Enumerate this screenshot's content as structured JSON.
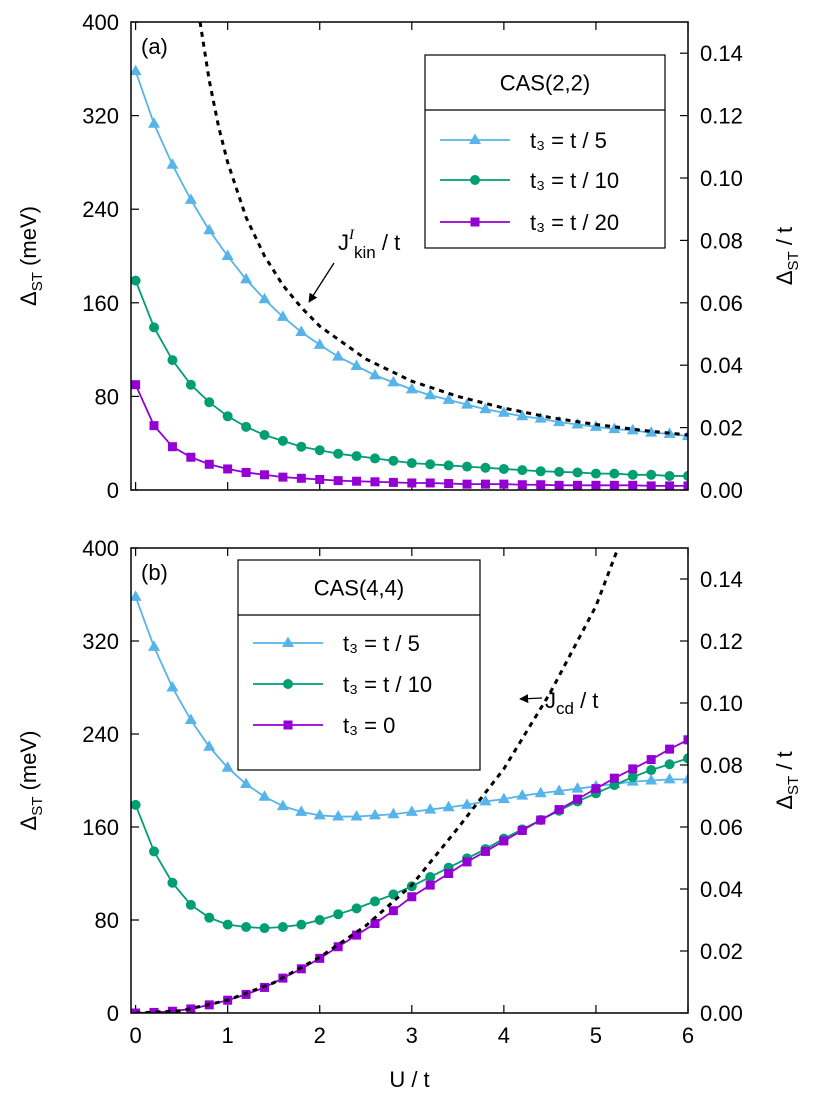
{
  "chart_data": [
    {
      "type": "line",
      "panel_label": "(a)",
      "legend_title": "CAS(2,2)",
      "ylabel": [
        "Δ",
        "ST",
        " (meV)"
      ],
      "y2label": [
        "Δ",
        "ST",
        " / t"
      ],
      "annotation": [
        "J",
        "I",
        "kin",
        " / t"
      ],
      "xlim": [
        -0.05,
        6
      ],
      "xticks": [
        0,
        1,
        2,
        3,
        4,
        5,
        6
      ],
      "show_xtick_labels": false,
      "ylim": [
        0,
        400
      ],
      "yticks": [
        0,
        80,
        160,
        240,
        320,
        400
      ],
      "y2lim": [
        0,
        0.15
      ],
      "y2ticks": [
        {
          "value": 0,
          "label": "0.00"
        },
        {
          "value": 0.02,
          "label": "0.02"
        },
        {
          "value": 0.04,
          "label": "0.04"
        },
        {
          "value": 0.06,
          "label": "0.06"
        },
        {
          "value": 0.08,
          "label": "0.08"
        },
        {
          "value": 0.1,
          "label": "0.10"
        },
        {
          "value": 0.12,
          "label": "0.12"
        },
        {
          "value": 0.14,
          "label": "0.14"
        }
      ],
      "x": [
        0,
        0.2,
        0.4,
        0.6,
        0.8,
        1,
        1.2,
        1.4,
        1.6,
        1.8,
        2,
        2.2,
        2.4,
        2.6,
        2.8,
        3,
        3.2,
        3.4,
        3.6,
        3.8,
        4,
        4.2,
        4.4,
        4.6,
        4.8,
        5,
        5.2,
        5.4,
        5.6,
        5.8,
        6
      ],
      "series": [
        {
          "name": "t₃ = t / 5",
          "color": "#56b4e9",
          "marker": "triangle",
          "values": [
            358,
            313,
            278,
            248,
            222,
            200,
            180,
            163,
            148,
            135,
            124,
            114,
            106,
            98,
            92,
            86,
            81,
            77,
            73,
            69,
            66,
            63,
            61,
            58,
            56,
            54,
            52,
            51,
            49,
            48,
            46
          ]
        },
        {
          "name": "t₃ = t / 10",
          "color": "#009e73",
          "marker": "circle",
          "values": [
            179,
            139,
            111,
            90,
            75,
            63,
            54,
            47,
            42,
            37,
            34,
            31,
            29,
            27,
            25,
            23,
            22,
            21,
            20,
            19,
            18,
            17,
            16,
            15.5,
            15,
            14,
            14,
            13,
            13,
            12,
            12
          ]
        },
        {
          "name": "t₃ = t / 20",
          "color": "#9400d3",
          "marker": "square",
          "values": [
            90,
            55,
            37,
            28,
            22,
            18,
            15,
            13,
            11,
            10,
            9,
            8,
            7.5,
            7,
            6.5,
            6,
            6,
            5.5,
            5,
            5,
            5,
            4.5,
            4.5,
            4,
            4,
            4,
            4,
            4,
            3.5,
            3.5,
            3.5
          ]
        },
        {
          "color": "#000000",
          "dashed": true,
          "x": [
            0.7,
            0.8,
            0.9,
            1,
            1.2,
            1.4,
            1.6,
            1.8,
            2,
            2.5,
            3,
            3.5,
            4,
            4.5,
            5,
            5.5,
            6
          ],
          "values": [
            400,
            350,
            311,
            280,
            233,
            200,
            175,
            156,
            140,
            112,
            93,
            80,
            70,
            62,
            56,
            51,
            47
          ]
        }
      ]
    },
    {
      "type": "line",
      "panel_label": "(b)",
      "legend_title": "CAS(4,4)",
      "ylabel": [
        "Δ",
        "ST",
        " (meV)"
      ],
      "y2label": [
        "Δ",
        "ST",
        " / t"
      ],
      "xlabel": "U / t",
      "annotation": [
        "J",
        "cd",
        " / t"
      ],
      "xlim": [
        -0.05,
        6
      ],
      "xticks": [
        0,
        1,
        2,
        3,
        4,
        5,
        6
      ],
      "show_xtick_labels": true,
      "ylim": [
        0,
        400
      ],
      "yticks": [
        0,
        80,
        160,
        240,
        320,
        400
      ],
      "y2lim": [
        0,
        0.15
      ],
      "y2ticks": [
        {
          "value": 0,
          "label": "0.00"
        },
        {
          "value": 0.02,
          "label": "0.02"
        },
        {
          "value": 0.04,
          "label": "0.04"
        },
        {
          "value": 0.06,
          "label": "0.06"
        },
        {
          "value": 0.08,
          "label": "0.08"
        },
        {
          "value": 0.1,
          "label": "0.10"
        },
        {
          "value": 0.12,
          "label": "0.12"
        },
        {
          "value": 0.14,
          "label": "0.14"
        }
      ],
      "x": [
        0,
        0.2,
        0.4,
        0.6,
        0.8,
        1,
        1.2,
        1.4,
        1.6,
        1.8,
        2,
        2.2,
        2.4,
        2.6,
        2.8,
        3,
        3.2,
        3.4,
        3.6,
        3.8,
        4,
        4.2,
        4.4,
        4.6,
        4.8,
        5,
        5.2,
        5.4,
        5.6,
        5.8,
        6
      ],
      "series": [
        {
          "name": "t₃ = t / 5",
          "color": "#56b4e9",
          "marker": "triangle",
          "values": [
            358,
            315,
            280,
            252,
            229,
            211,
            197,
            186,
            178,
            173,
            170,
            169,
            169,
            170,
            171,
            173,
            175,
            177,
            179,
            182,
            184,
            187,
            189,
            191,
            193,
            195,
            197,
            199,
            200,
            201,
            201
          ]
        },
        {
          "name": "t₃ = t / 10",
          "color": "#009e73",
          "marker": "circle",
          "values": [
            179,
            139,
            112,
            93,
            82,
            76,
            74,
            73,
            74,
            76,
            80,
            85,
            90,
            96,
            102,
            109,
            117,
            125,
            133,
            141,
            150,
            158,
            166,
            174,
            182,
            189,
            196,
            203,
            209,
            214,
            219
          ]
        },
        {
          "name": "t₃ = 0",
          "color": "#9400d3",
          "marker": "square",
          "values": [
            0,
            0.5,
            1.5,
            3.5,
            7,
            11,
            16,
            22,
            30,
            38,
            47,
            57,
            67,
            77,
            88,
            100,
            110,
            120,
            130,
            139,
            148,
            157,
            166,
            175,
            184,
            193,
            202,
            210,
            218,
            227,
            235
          ]
        },
        {
          "color": "#000000",
          "dashed": true,
          "x": [
            0,
            0.5,
            1,
            1.5,
            2,
            2.5,
            3,
            3.5,
            4,
            4.5,
            5,
            5.24
          ],
          "values": [
            0,
            2,
            11,
            26,
            48,
            75,
            110,
            159,
            210,
            275,
            350,
            400
          ]
        }
      ]
    }
  ]
}
